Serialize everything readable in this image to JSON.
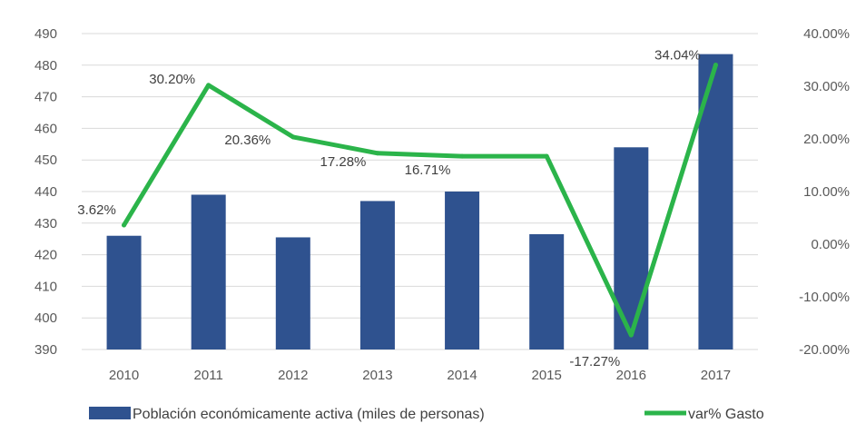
{
  "chart_data": {
    "type": "bar",
    "categories": [
      "2010",
      "2011",
      "2012",
      "2013",
      "2014",
      "2015",
      "2016",
      "2017"
    ],
    "series": [
      {
        "name": "Población económicamente activa (miles de personas)",
        "type": "bar",
        "axis": "left",
        "values": [
          426,
          439,
          425.5,
          437,
          440,
          426.5,
          454,
          483.5
        ],
        "color": "#2f528f"
      },
      {
        "name": "var% Gasto",
        "type": "line",
        "axis": "right",
        "values": [
          3.62,
          30.2,
          20.36,
          17.28,
          16.71,
          16.71,
          -17.27,
          34.04
        ],
        "labels": [
          "3.62%",
          "30.20%",
          "20.36%",
          "17.28%",
          "16.71%",
          null,
          "-17.27%",
          "34.04%"
        ],
        "color": "#2bb44a"
      }
    ],
    "y_left": {
      "range": [
        390,
        490
      ],
      "ticks": [
        "390",
        "400",
        "410",
        "420",
        "430",
        "440",
        "450",
        "460",
        "470",
        "480",
        "490"
      ]
    },
    "y_right": {
      "range": [
        -20,
        40
      ],
      "ticks": [
        "-20.00%",
        "-10.00%",
        "0.00%",
        "10.00%",
        "20.00%",
        "30.00%",
        "40.00%"
      ]
    },
    "grid": true,
    "legend_position": "bottom"
  }
}
